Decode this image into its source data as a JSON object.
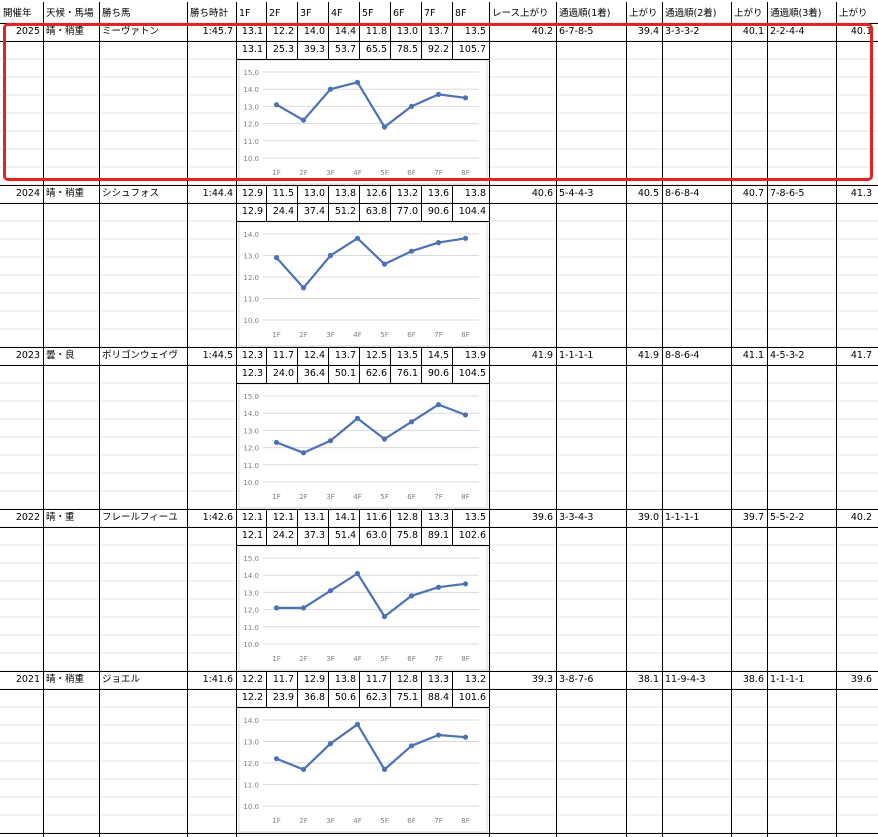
{
  "headers": [
    "開催年",
    "天候・馬場",
    "勝ち馬",
    "勝ち時計",
    "1F",
    "2F",
    "3F",
    "4F",
    "5F",
    "6F",
    "7F",
    "8F",
    "レース上がり",
    "通過順(1着)",
    "上がり",
    "通過順(2着)",
    "上がり",
    "通過順(3着)",
    "上がり"
  ],
  "races": [
    {
      "year": "2025",
      "weather": "晴・稍重",
      "winner": "ミーヴァトン",
      "time": "1:45.7",
      "laps": [
        "13.1",
        "12.2",
        "14.0",
        "14.4",
        "11.8",
        "13.0",
        "13.7",
        "13.5"
      ],
      "cum": [
        "13.1",
        "25.3",
        "39.3",
        "53.7",
        "65.5",
        "78.5",
        "92.2",
        "105.7"
      ],
      "race_agari": "40.2",
      "pass1": "6-7-8-5",
      "agari1": "39.4",
      "pass2": "3-3-3-2",
      "agari2": "40.1",
      "pass3": "2-2-4-4",
      "agari3": "40.1"
    },
    {
      "year": "2024",
      "weather": "晴・稍重",
      "winner": "シシュフォス",
      "time": "1:44.4",
      "laps": [
        "12.9",
        "11.5",
        "13.0",
        "13.8",
        "12.6",
        "13.2",
        "13.6",
        "13.8"
      ],
      "cum": [
        "12.9",
        "24.4",
        "37.4",
        "51.2",
        "63.8",
        "77.0",
        "90.6",
        "104.4"
      ],
      "race_agari": "40.6",
      "pass1": "5-4-4-3",
      "agari1": "40.5",
      "pass2": "8-6-8-4",
      "agari2": "40.7",
      "pass3": "7-8-6-5",
      "agari3": "41.3"
    },
    {
      "year": "2023",
      "weather": "曇・良",
      "winner": "ポリゴンウェイヴ",
      "time": "1:44.5",
      "laps": [
        "12.3",
        "11.7",
        "12.4",
        "13.7",
        "12.5",
        "13.5",
        "14.5",
        "13.9"
      ],
      "cum": [
        "12.3",
        "24.0",
        "36.4",
        "50.1",
        "62.6",
        "76.1",
        "90.6",
        "104.5"
      ],
      "race_agari": "41.9",
      "pass1": "1-1-1-1",
      "agari1": "41.9",
      "pass2": "8-8-6-4",
      "agari2": "41.1",
      "pass3": "4-5-3-2",
      "agari3": "41.7"
    },
    {
      "year": "2022",
      "weather": "晴・重",
      "winner": "フレールフィーユ",
      "time": "1:42.6",
      "laps": [
        "12.1",
        "12.1",
        "13.1",
        "14.1",
        "11.6",
        "12.8",
        "13.3",
        "13.5"
      ],
      "cum": [
        "12.1",
        "24.2",
        "37.3",
        "51.4",
        "63.0",
        "75.8",
        "89.1",
        "102.6"
      ],
      "race_agari": "39.6",
      "pass1": "3-3-4-3",
      "agari1": "39.0",
      "pass2": "1-1-1-1",
      "agari2": "39.7",
      "pass3": "5-5-2-2",
      "agari3": "40.2"
    },
    {
      "year": "2021",
      "weather": "晴・稍重",
      "winner": "ジョエル",
      "time": "1:41.6",
      "laps": [
        "12.2",
        "11.7",
        "12.9",
        "13.8",
        "11.7",
        "12.8",
        "13.3",
        "13.2"
      ],
      "cum": [
        "12.2",
        "23.9",
        "36.8",
        "50.6",
        "62.3",
        "75.1",
        "88.4",
        "101.6"
      ],
      "race_agari": "39.3",
      "pass1": "3-8-7-6",
      "agari1": "38.1",
      "pass2": "11-9-4-3",
      "agari2": "38.6",
      "pass3": "1-1-1-1",
      "agari3": "39.6"
    }
  ],
  "chart_data": [
    {
      "type": "line",
      "categories": [
        "1F",
        "2F",
        "3F",
        "4F",
        "5F",
        "6F",
        "7F",
        "8F"
      ],
      "values": [
        13.1,
        12.2,
        14.0,
        14.4,
        11.8,
        13.0,
        13.7,
        13.5
      ],
      "yticks": [
        "10.0",
        "11.0",
        "12.0",
        "13.0",
        "14.0",
        "15.0"
      ],
      "ylim": [
        10,
        15
      ],
      "grid": true,
      "color": "#4a72b5"
    },
    {
      "type": "line",
      "categories": [
        "1F",
        "2F",
        "3F",
        "4F",
        "5F",
        "6F",
        "7F",
        "8F"
      ],
      "values": [
        12.9,
        11.5,
        13.0,
        13.8,
        12.6,
        13.2,
        13.6,
        13.8
      ],
      "yticks": [
        "10.0",
        "11.0",
        "12.0",
        "13.0",
        "14.0"
      ],
      "ylim": [
        10,
        14
      ],
      "grid": true,
      "color": "#4a72b5"
    },
    {
      "type": "line",
      "categories": [
        "1F",
        "2F",
        "3F",
        "4F",
        "5F",
        "6F",
        "7F",
        "8F"
      ],
      "values": [
        12.3,
        11.7,
        12.4,
        13.7,
        12.5,
        13.5,
        14.5,
        13.9
      ],
      "yticks": [
        "10.0",
        "11.0",
        "12.0",
        "13.0",
        "14.0",
        "15.0"
      ],
      "ylim": [
        10,
        15
      ],
      "grid": true,
      "color": "#4a72b5"
    },
    {
      "type": "line",
      "categories": [
        "1F",
        "2F",
        "3F",
        "4F",
        "5F",
        "6F",
        "7F",
        "8F"
      ],
      "values": [
        12.1,
        12.1,
        13.1,
        14.1,
        11.6,
        12.8,
        13.3,
        13.5
      ],
      "yticks": [
        "10.0",
        "11.0",
        "12.0",
        "13.0",
        "14.0",
        "15.0"
      ],
      "ylim": [
        10,
        15
      ],
      "grid": true,
      "color": "#4a72b5"
    },
    {
      "type": "line",
      "categories": [
        "1F",
        "2F",
        "3F",
        "4F",
        "5F",
        "6F",
        "7F",
        "8F"
      ],
      "values": [
        12.2,
        11.7,
        12.9,
        13.8,
        11.7,
        12.8,
        13.3,
        13.2
      ],
      "yticks": [
        "10.0",
        "11.0",
        "12.0",
        "13.0",
        "14.0"
      ],
      "ylim": [
        10,
        14
      ],
      "grid": true,
      "color": "#4a72b5"
    }
  ]
}
